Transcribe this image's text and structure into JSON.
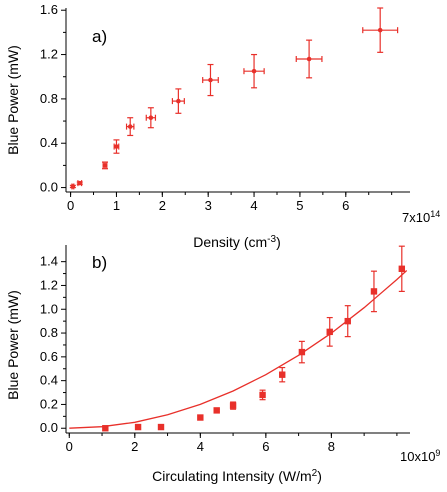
{
  "chart_data": [
    {
      "type": "scatter",
      "panel_label": "a)",
      "xlabel": "Density (cm",
      "xlabel_sup": "-3",
      "xlabel_suffix": ")",
      "ylabel": "Blue Power (mW)",
      "x_multiplier_label": "7x10",
      "x_multiplier_exp": "14",
      "xlim": [
        -0.1,
        7.4
      ],
      "ylim": [
        -0.04,
        1.62
      ],
      "xticks": [
        0,
        1,
        2,
        3,
        4,
        5,
        6
      ],
      "xtick_labels": [
        "0",
        "1",
        "2",
        "3",
        "4",
        "5",
        "6"
      ],
      "yticks": [
        0.0,
        0.4,
        0.8,
        1.2,
        1.6
      ],
      "ytick_labels": [
        "0.0",
        "0.4",
        "0.8",
        "1.2",
        "1.6"
      ],
      "marker": "circle",
      "color": "#e8302a",
      "grid": false,
      "series": [
        {
          "x": [
            0.05,
            0.2,
            0.75,
            1.0,
            1.3,
            1.75,
            2.35,
            3.05,
            4.0,
            5.2,
            6.75
          ],
          "y": [
            0.01,
            0.04,
            0.2,
            0.37,
            0.55,
            0.63,
            0.78,
            0.97,
            1.05,
            1.16,
            1.42
          ],
          "xerr": [
            0.02,
            0.04,
            0.04,
            0.05,
            0.08,
            0.1,
            0.13,
            0.17,
            0.22,
            0.28,
            0.38
          ],
          "yerr": [
            0.01,
            0.01,
            0.03,
            0.06,
            0.08,
            0.09,
            0.11,
            0.14,
            0.15,
            0.17,
            0.2
          ]
        }
      ]
    },
    {
      "type": "scatter",
      "panel_label": "b)",
      "xlabel": "Circulating Intensity (W/m",
      "xlabel_sup": "2",
      "xlabel_suffix": ")",
      "ylabel": "Blue Power (mW)",
      "x_multiplier_label": "10x10",
      "x_multiplier_exp": "9",
      "xlim": [
        -0.1,
        10.4
      ],
      "ylim": [
        -0.04,
        1.54
      ],
      "xticks": [
        0,
        2,
        4,
        6,
        8
      ],
      "xtick_labels": [
        "0",
        "2",
        "4",
        "6",
        "8"
      ],
      "yticks": [
        0.0,
        0.2,
        0.4,
        0.6,
        0.8,
        1.0,
        1.2,
        1.4
      ],
      "ytick_labels": [
        "0.0",
        "0.2",
        "0.4",
        "0.6",
        "0.8",
        "1.0",
        "1.2",
        "1.4"
      ],
      "marker": "square",
      "color": "#e8302a",
      "grid": false,
      "series": [
        {
          "x": [
            1.1,
            2.1,
            2.8,
            4.0,
            4.5,
            5.0,
            5.9,
            6.5,
            7.1,
            7.95,
            8.5,
            9.3,
            10.15
          ],
          "y": [
            0.0,
            0.01,
            0.01,
            0.09,
            0.15,
            0.19,
            0.28,
            0.45,
            0.64,
            0.81,
            0.9,
            1.15,
            1.34
          ],
          "yerr": [
            0.0,
            0.0,
            0.0,
            0.0,
            0.01,
            0.03,
            0.04,
            0.06,
            0.09,
            0.12,
            0.13,
            0.17,
            0.19
          ]
        }
      ],
      "fit": {
        "type": "quadratic",
        "x": [
          0,
          1,
          2,
          3,
          4,
          5,
          6,
          7,
          8,
          9,
          10,
          10.3
        ],
        "y": [
          0.0,
          0.013,
          0.05,
          0.113,
          0.2,
          0.313,
          0.45,
          0.613,
          0.8,
          1.013,
          1.25,
          1.326
        ]
      }
    }
  ]
}
